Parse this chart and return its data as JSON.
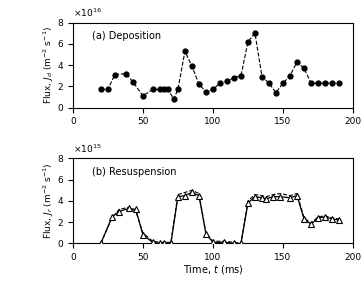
{
  "deposition": {
    "t": [
      20,
      25,
      30,
      38,
      43,
      50,
      57,
      62,
      65,
      68,
      72,
      75,
      80,
      85,
      90,
      95,
      100,
      105,
      110,
      115,
      120,
      125,
      130,
      135,
      140,
      145,
      150,
      155,
      160,
      165,
      170,
      175,
      180,
      185,
      190
    ],
    "J": [
      1.7,
      1.7,
      3.1,
      3.2,
      2.4,
      1.1,
      1.7,
      1.7,
      1.7,
      1.7,
      0.8,
      1.7,
      5.3,
      3.9,
      2.2,
      1.5,
      1.7,
      2.3,
      2.5,
      2.8,
      3.0,
      6.2,
      7.0,
      2.9,
      2.3,
      1.4,
      2.3,
      3.0,
      4.3,
      3.7,
      2.3,
      2.3,
      2.3,
      2.3,
      2.3
    ],
    "exponent_label": "x10^{16}",
    "ylabel": "Flux, $J_d$ (m$^{-2}$ s$^{-1}$)",
    "ylim": [
      0,
      8
    ],
    "yticks": [
      0,
      2,
      4,
      6,
      8
    ],
    "panel_label": "(a) Deposition"
  },
  "resuspension": {
    "t_solid": [
      20,
      28,
      33,
      40,
      45,
      50,
      57,
      62,
      65,
      70,
      75,
      80,
      85,
      90,
      95,
      100,
      108,
      115,
      120,
      125,
      130,
      135,
      138,
      143,
      148,
      155,
      160,
      165,
      170,
      175,
      180,
      185,
      190
    ],
    "J_solid": [
      0.0,
      2.5,
      3.0,
      3.3,
      3.2,
      0.8,
      0.1,
      0.0,
      0.0,
      0.0,
      4.4,
      4.5,
      4.8,
      4.5,
      0.9,
      0.1,
      0.1,
      0.0,
      0.0,
      3.8,
      4.4,
      4.3,
      4.2,
      4.4,
      4.4,
      4.3,
      4.5,
      2.3,
      1.8,
      2.4,
      2.5,
      2.3,
      2.2
    ],
    "t_dash": [
      20,
      28,
      33,
      40,
      45,
      50,
      57,
      62,
      65,
      70,
      75,
      80,
      85,
      90,
      95,
      100,
      108,
      115,
      120,
      125,
      130,
      135,
      138,
      143,
      148,
      155,
      160,
      165,
      170,
      175,
      180,
      185,
      190
    ],
    "J_dash": [
      0.0,
      2.4,
      3.2,
      3.4,
      3.0,
      1.0,
      0.2,
      0.1,
      0.1,
      0.1,
      4.6,
      4.8,
      5.0,
      4.7,
      1.0,
      0.2,
      0.2,
      0.1,
      0.0,
      4.0,
      4.6,
      4.5,
      4.4,
      4.6,
      4.7,
      4.5,
      4.7,
      2.4,
      1.9,
      2.5,
      2.6,
      2.4,
      2.3
    ],
    "exponent_label": "x10^{15}",
    "ylabel": "Flux, $J_r$ (m$^{-2}$ s$^{-1}$)",
    "ylim": [
      0,
      8
    ],
    "yticks": [
      0,
      2,
      4,
      6,
      8
    ],
    "panel_label": "(b) Resuspension"
  },
  "xlim": [
    0,
    200
  ],
  "xticks": [
    0,
    50,
    100,
    150,
    200
  ],
  "xlabel": "Time, $t$ (ms)",
  "figsize": [
    3.64,
    2.83
  ],
  "dpi": 100
}
